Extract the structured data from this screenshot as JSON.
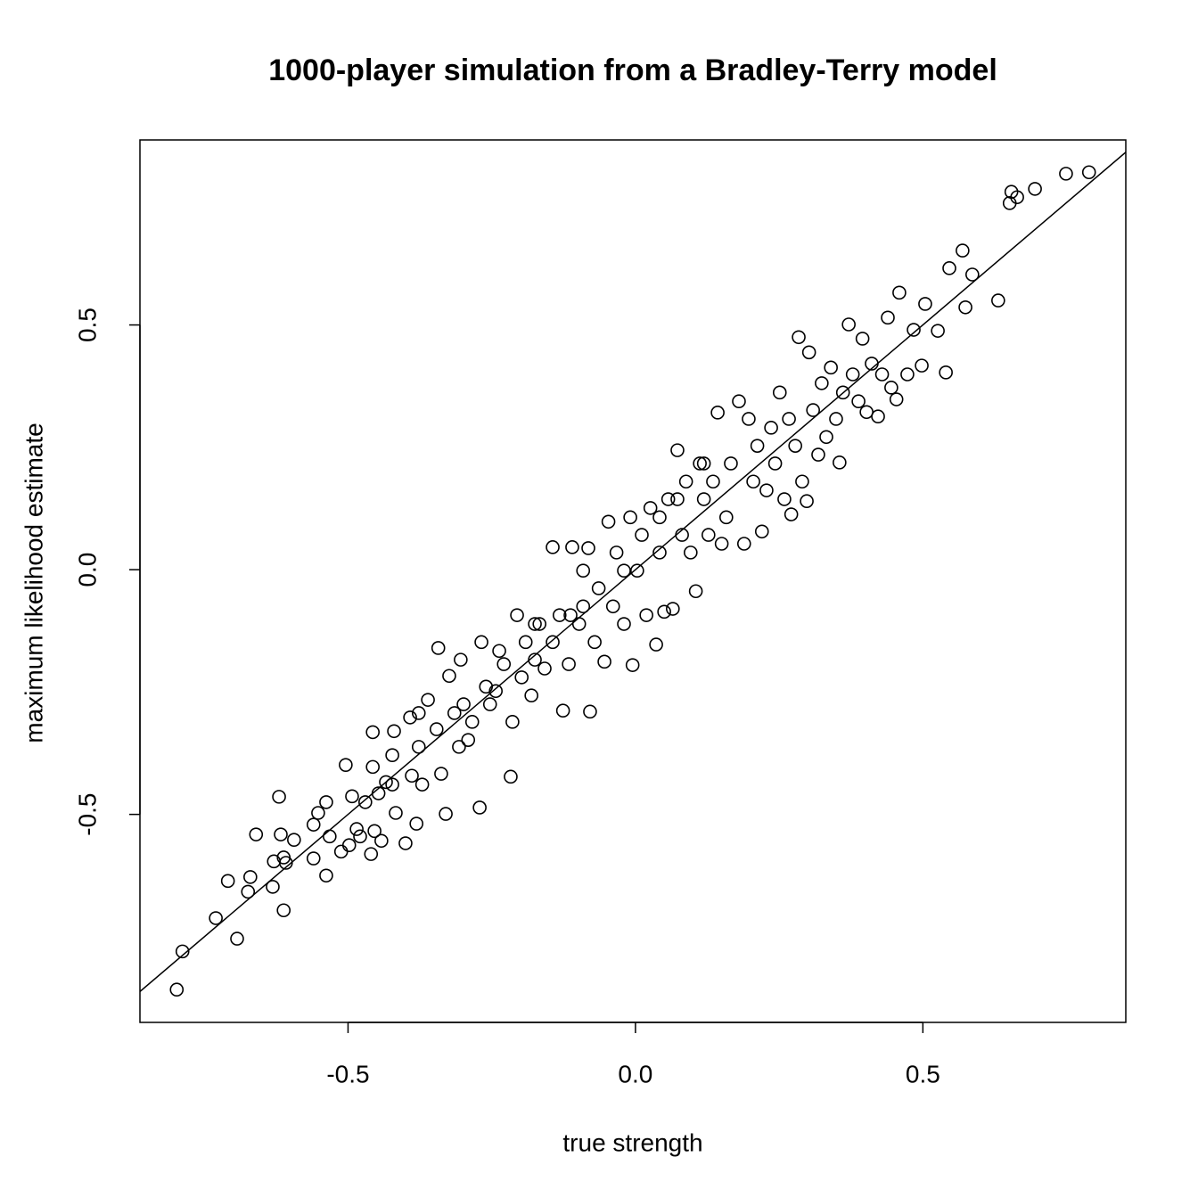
{
  "chart_data": {
    "type": "scatter",
    "title": "1000-player simulation from a Bradley-Terry model",
    "x_label": "true strength",
    "y_label": "maximum likelihood estimate",
    "xlim": [
      -0.862,
      0.853
    ],
    "ylim": [
      -0.925,
      0.878
    ],
    "xticks": [
      -0.5,
      {
        "value": 0,
        "label": "0.0"
      },
      0.5
    ],
    "yticks": [
      -0.5,
      {
        "value": 0,
        "label": "0.0"
      },
      0.5
    ],
    "abline": {
      "intercept": 0,
      "slope": 1
    },
    "color": "#000000",
    "x": [
      -0.798,
      -0.788,
      -0.73,
      -0.709,
      -0.693,
      -0.674,
      -0.67,
      -0.66,
      -0.631,
      -0.629,
      -0.62,
      -0.617,
      -0.612,
      -0.612,
      -0.608,
      -0.594,
      -0.56,
      -0.56,
      -0.552,
      -0.538,
      -0.538,
      -0.532,
      -0.512,
      -0.504,
      -0.498,
      -0.493,
      -0.485,
      -0.479,
      -0.46,
      -0.457,
      -0.457,
      -0.454,
      -0.447,
      -0.442,
      -0.434,
      -0.423,
      -0.42,
      -0.417,
      -0.4,
      -0.392,
      -0.389,
      -0.381,
      -0.377,
      -0.371,
      -0.361,
      -0.346,
      -0.343,
      -0.338,
      -0.33,
      -0.324,
      -0.315,
      -0.307,
      -0.304,
      -0.291,
      -0.284,
      -0.271,
      -0.268,
      -0.26,
      -0.253,
      -0.243,
      -0.229,
      -0.217,
      -0.214,
      -0.206,
      -0.198,
      -0.191,
      -0.181,
      -0.175,
      -0.167,
      -0.158,
      -0.144,
      -0.144,
      -0.132,
      -0.126,
      -0.116,
      -0.11,
      -0.098,
      -0.091,
      -0.082,
      -0.079,
      -0.071,
      -0.064,
      -0.054,
      -0.047,
      -0.039,
      -0.033,
      -0.02,
      -0.009,
      -0.005,
      0.003,
      0.011,
      0.019,
      0.026,
      0.036,
      0.042,
      0.05,
      0.057,
      0.065,
      0.073,
      0.081,
      0.088,
      0.096,
      0.105,
      0.112,
      0.119,
      0.127,
      0.135,
      0.143,
      0.15,
      0.158,
      0.166,
      0.18,
      0.189,
      0.197,
      0.205,
      0.212,
      0.22,
      0.228,
      0.236,
      0.243,
      0.251,
      0.259,
      0.267,
      0.271,
      0.278,
      0.284,
      0.29,
      0.298,
      0.302,
      0.309,
      0.318,
      0.324,
      0.332,
      0.34,
      0.349,
      0.355,
      0.361,
      0.371,
      0.378,
      0.388,
      0.395,
      0.402,
      0.411,
      0.422,
      0.429,
      0.439,
      0.445,
      0.454,
      0.459,
      0.473,
      0.484,
      0.498,
      0.504,
      0.526,
      0.54,
      0.546,
      0.569,
      0.574,
      0.586,
      0.631,
      0.651,
      0.654,
      0.664,
      0.695,
      0.749,
      0.789,
      -0.237,
      -0.175,
      -0.113,
      -0.091,
      -0.02,
      0.042,
      0.073,
      0.119,
      -0.377,
      -0.299,
      -0.423,
      -0.47
    ],
    "values": [
      -0.858,
      -0.78,
      -0.712,
      -0.636,
      -0.754,
      -0.658,
      -0.628,
      -0.541,
      -0.648,
      -0.596,
      -0.464,
      -0.541,
      -0.588,
      -0.696,
      -0.599,
      -0.552,
      -0.521,
      -0.59,
      -0.497,
      -0.625,
      -0.475,
      -0.545,
      -0.576,
      -0.399,
      -0.563,
      -0.463,
      -0.53,
      -0.545,
      -0.581,
      -0.332,
      -0.403,
      -0.534,
      -0.457,
      -0.554,
      -0.434,
      -0.379,
      -0.33,
      -0.497,
      -0.559,
      -0.302,
      -0.421,
      -0.519,
      -0.362,
      -0.439,
      -0.266,
      -0.326,
      -0.16,
      -0.417,
      -0.499,
      -0.217,
      -0.293,
      -0.362,
      -0.184,
      -0.348,
      -0.311,
      -0.486,
      -0.148,
      -0.239,
      -0.275,
      -0.248,
      -0.193,
      -0.423,
      -0.311,
      -0.093,
      -0.22,
      -0.148,
      -0.257,
      -0.184,
      -0.111,
      -0.202,
      0.046,
      -0.148,
      -0.093,
      -0.288,
      -0.193,
      0.046,
      -0.111,
      -0.075,
      0.044,
      -0.29,
      -0.148,
      -0.038,
      -0.188,
      0.098,
      -0.075,
      0.035,
      -0.111,
      0.107,
      -0.195,
      -0.002,
      0.071,
      -0.093,
      0.126,
      -0.153,
      0.035,
      -0.086,
      0.144,
      -0.08,
      0.244,
      0.071,
      0.18,
      0.035,
      -0.044,
      0.217,
      0.144,
      0.071,
      0.18,
      0.321,
      0.053,
      0.107,
      0.217,
      0.344,
      0.053,
      0.308,
      0.18,
      0.253,
      0.078,
      0.162,
      0.29,
      0.217,
      0.362,
      0.144,
      0.308,
      0.113,
      0.253,
      0.475,
      0.18,
      0.14,
      0.444,
      0.326,
      0.235,
      0.381,
      0.271,
      0.413,
      0.308,
      0.219,
      0.362,
      0.501,
      0.399,
      0.344,
      0.472,
      0.322,
      0.421,
      0.313,
      0.399,
      0.515,
      0.372,
      0.348,
      0.566,
      0.399,
      0.49,
      0.417,
      0.543,
      0.488,
      0.403,
      0.616,
      0.652,
      0.536,
      0.603,
      0.55,
      0.749,
      0.772,
      0.761,
      0.778,
      0.809,
      0.812,
      -0.166,
      -0.111,
      -0.093,
      -0.002,
      -0.002,
      0.107,
      0.144,
      0.217,
      -0.293,
      -0.275,
      -0.439,
      -0.475
    ]
  }
}
